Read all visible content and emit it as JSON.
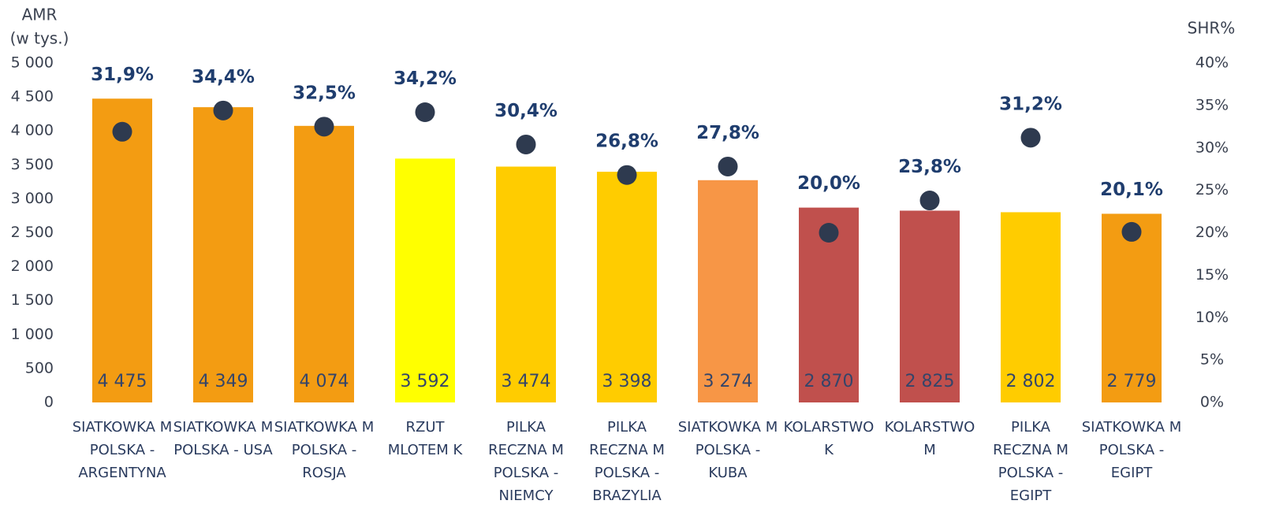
{
  "chart_data": {
    "type": "bar",
    "y_label": [
      "AMR",
      "(w tys.)"
    ],
    "y2_label": "SHR%",
    "categories": [
      "SIATKOWKA M POLSKA - ARGENTYNA",
      "SIATKOWKA M POLSKA - USA",
      "SIATKOWKA M POLSKA - ROSJA",
      "RZUT MLOTEM K",
      "PILKA RECZNA M POLSKA - NIEMCY",
      "PILKA RECZNA M POLSKA - BRAZYLIA",
      "SIATKOWKA M POLSKA - KUBA",
      "KOLARSTWO K",
      "KOLARSTWO M",
      "PILKA RECZNA M POLSKA - EGIPT",
      "SIATKOWKA M POLSKA - EGIPT"
    ],
    "series": [
      {
        "type": "bar",
        "colors": [
          "#F39C12",
          "#F39C12",
          "#F39C12",
          "#FFFF00",
          "#FFCC00",
          "#FFCC00",
          "#F79646",
          "#C0504D",
          "#C0504D",
          "#FFCC00",
          "#F39C12"
        ],
        "values": [
          4475,
          4349,
          4074,
          3592,
          3474,
          3398,
          3274,
          2870,
          2825,
          2802,
          2779
        ],
        "value_labels": [
          "4 475",
          "4 349",
          "4 074",
          "3 592",
          "3 474",
          "3 398",
          "3 274",
          "2 870",
          "2 825",
          "2 802",
          "2 779"
        ]
      },
      {
        "type": "scatter",
        "axis": "y2",
        "color": "#2E3A4F",
        "values": [
          31.9,
          34.4,
          32.5,
          34.2,
          30.4,
          26.8,
          27.8,
          20.0,
          23.8,
          31.2,
          20.1
        ],
        "value_labels": [
          "31,9%",
          "34,4%",
          "32,5%",
          "34,2%",
          "30,4%",
          "26,8%",
          "27,8%",
          "20,0%",
          "23,8%",
          "31,2%",
          "20,1%"
        ]
      }
    ],
    "ylim": [
      0,
      5000
    ],
    "yticks": [
      0,
      500,
      {
        "value": 1000,
        "label": "1 000"
      },
      {
        "value": 1500,
        "label": "1 500"
      },
      {
        "value": 2000,
        "label": "2 000"
      },
      {
        "value": 2500,
        "label": "2 500"
      },
      {
        "value": 3000,
        "label": "3 000"
      },
      {
        "value": 3500,
        "label": "3 500"
      },
      {
        "value": 4000,
        "label": "4 000"
      },
      {
        "value": 4500,
        "label": "4 500"
      },
      {
        "value": 5000,
        "label": "5 000"
      }
    ],
    "y2lim": [
      0,
      40
    ],
    "y2ticks": [
      {
        "value": 0,
        "label": "0%"
      },
      {
        "value": 5,
        "label": "5%"
      },
      {
        "value": 10,
        "label": "10%"
      },
      {
        "value": 15,
        "label": "15%"
      },
      {
        "value": 20,
        "label": "20%"
      },
      {
        "value": 25,
        "label": "25%"
      },
      {
        "value": 30,
        "label": "30%"
      },
      {
        "value": 35,
        "label": "35%"
      },
      {
        "value": 40,
        "label": "40%"
      }
    ]
  }
}
